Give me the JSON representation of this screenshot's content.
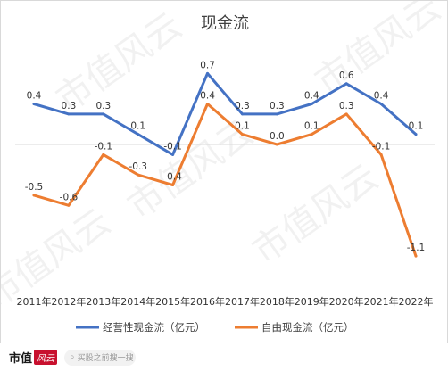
{
  "chart_data": {
    "type": "line",
    "title": "现金流",
    "categories": [
      "2011年",
      "2012年",
      "2013年",
      "2014年",
      "2015年",
      "2016年",
      "2017年",
      "2018年",
      "2019年",
      "2020年",
      "2021年",
      "2022年"
    ],
    "series": [
      {
        "name": "经营性现金流（亿元）",
        "color": "#4472c4",
        "values": [
          0.4,
          0.3,
          0.3,
          0.1,
          -0.1,
          0.7,
          0.3,
          0.3,
          0.4,
          0.6,
          0.4,
          0.1
        ],
        "labels": [
          "0.4",
          "0.3",
          "0.3",
          "0.1",
          "-0.1",
          "0.7",
          "0.3",
          "0.3",
          "0.4",
          "0.6",
          "0.4",
          "0.1"
        ]
      },
      {
        "name": "自由现金流（亿元）",
        "color": "#ed7d31",
        "values": [
          -0.5,
          -0.6,
          -0.1,
          -0.3,
          -0.4,
          0.4,
          0.1,
          0.0,
          0.1,
          0.3,
          -0.1,
          -1.1
        ],
        "labels": [
          "-0.5",
          "-0.6",
          "-0.1",
          "-0.3",
          "-0.4",
          "0.4",
          "0.1",
          "0.0",
          "0.1",
          "0.3",
          "-0.1",
          "-1.1"
        ]
      }
    ],
    "ylim": [
      -1.1,
      0.8
    ],
    "grid": false,
    "legend": "bottom"
  },
  "watermark": "市值风云",
  "footer": {
    "logo_text": "市值",
    "logo_badge": "风云",
    "search_placeholder": "买股之前搜一搜"
  }
}
